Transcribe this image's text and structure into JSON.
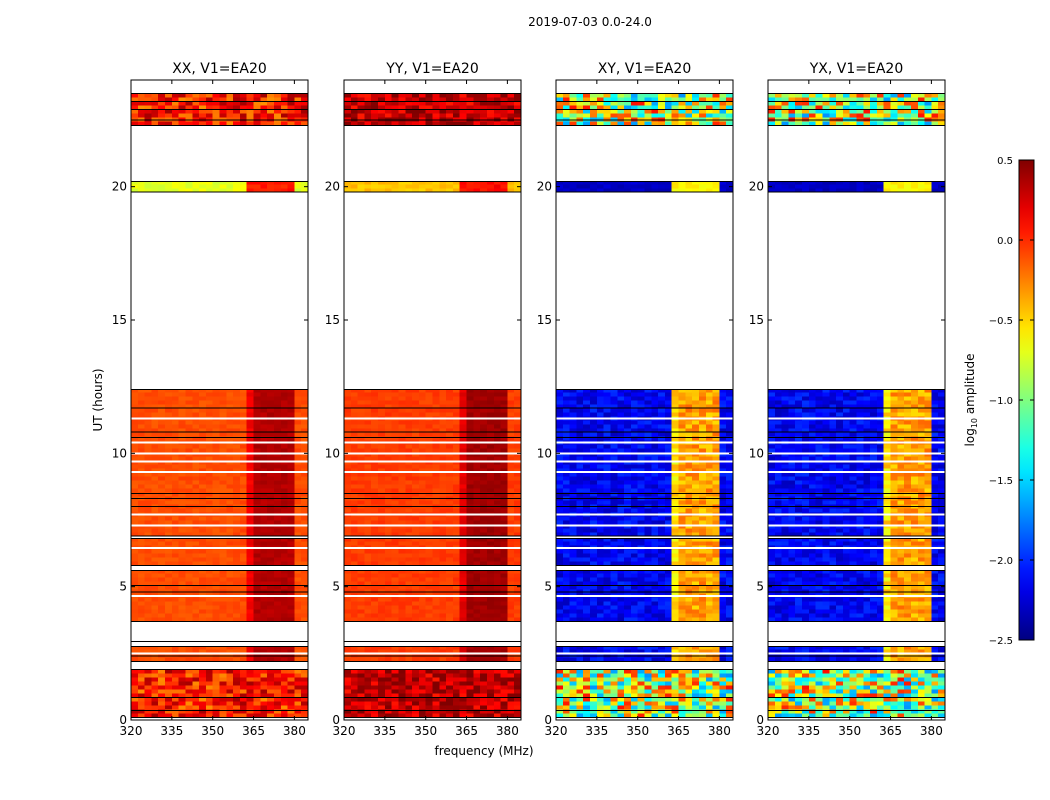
{
  "chart_data": {
    "type": "heatmap",
    "title": "2019-07-03 0.0-24.0",
    "xlabel": "frequency (MHz)",
    "ylabel": "UT (hours)",
    "xlim": [
      320,
      385
    ],
    "ylim": [
      0,
      24
    ],
    "xticks": [
      320,
      335,
      350,
      365,
      380
    ],
    "yticks": [
      0,
      5,
      10,
      15,
      20
    ],
    "colorbar": {
      "label_main": "log",
      "label_sub": "10",
      "label_rest": " amplitude",
      "range": [
        -2.5,
        0.5
      ],
      "ticks": [
        0.5,
        0.0,
        -0.5,
        -1.0,
        -1.5,
        -2.0,
        -2.5
      ],
      "tick_labels": [
        "0.5",
        "0.0",
        "−0.5",
        "−1.0",
        "−1.5",
        "−2.0",
        "−2.5"
      ],
      "colormap": "jet"
    },
    "time_blocks": [
      {
        "start": 0.1,
        "end": 1.9,
        "kind": "noisy"
      },
      {
        "start": 2.2,
        "end": 2.75,
        "kind": "normal"
      },
      {
        "start": 3.7,
        "end": 5.6,
        "kind": "normal"
      },
      {
        "start": 5.8,
        "end": 6.8,
        "kind": "normal"
      },
      {
        "start": 6.9,
        "end": 12.4,
        "kind": "normal"
      },
      {
        "start": 19.8,
        "end": 20.2,
        "kind": "weak"
      },
      {
        "start": 22.3,
        "end": 23.5,
        "kind": "noisy"
      }
    ],
    "white_gaps_hours": [
      2.5,
      4.65,
      6.45,
      7.3,
      7.7,
      9.3,
      9.7,
      10.0,
      10.4,
      11.3
    ],
    "black_lines_hours": [
      0.35,
      0.85,
      2.4,
      2.95,
      4.8,
      5.05,
      8.0,
      8.3,
      8.5,
      10.6,
      10.8,
      11.7,
      22.5,
      22.9,
      23.2
    ],
    "band_mhz": [
      363,
      380
    ],
    "panels": [
      {
        "title": "XX, V1=EA20",
        "base": -0.1,
        "band": 0.35,
        "weak_base": -0.7,
        "weak_band": 0.05,
        "noisy_base": 0.05,
        "noise": 0.35
      },
      {
        "title": "YY, V1=EA20",
        "base": -0.05,
        "band": 0.4,
        "weak_base": -0.45,
        "weak_band": 0.1,
        "noisy_base": 0.3,
        "noise": 0.25
      },
      {
        "title": "XY, V1=EA20",
        "base": -2.15,
        "band": -0.35,
        "weak_base": -2.3,
        "weak_band": -0.6,
        "noisy_base": -0.8,
        "noise": 0.9
      },
      {
        "title": "YX, V1=EA20",
        "base": -2.15,
        "band": -0.35,
        "weak_base": -2.3,
        "weak_band": -0.6,
        "noisy_base": -0.8,
        "noise": 0.9
      }
    ]
  }
}
